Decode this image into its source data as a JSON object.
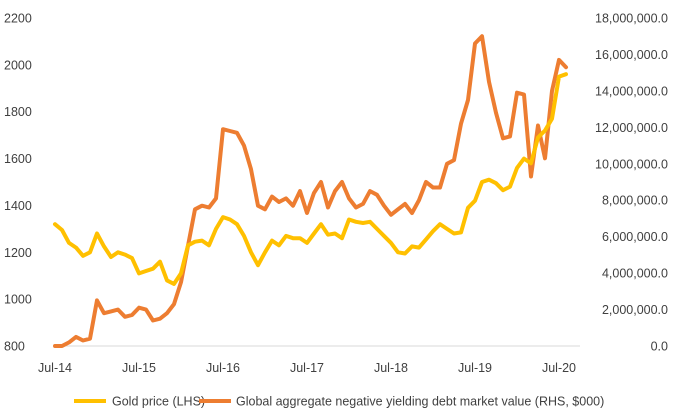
{
  "chart_data": {
    "type": "line",
    "x_ticks": [
      "Jul-14",
      "Jul-15",
      "Jul-16",
      "Jul-17",
      "Jul-18",
      "Jul-19",
      "Jul-20"
    ],
    "left_axis": {
      "ticks": [
        "800",
        "1000",
        "1200",
        "1400",
        "1600",
        "1800",
        "2000",
        "2200"
      ],
      "ylim": [
        800,
        2200
      ]
    },
    "right_axis": {
      "ticks": [
        "0.0",
        "2,000,000.0",
        "4,000,000.0",
        "6,000,000.0",
        "8,000,000.0",
        "10,000,000.0",
        "12,000,000.0",
        "14,000,000.0",
        "16,000,000.0",
        "18,000,000.0"
      ],
      "ylim": [
        0,
        18000000
      ]
    },
    "grid": false,
    "legend_position": "bottom",
    "series": [
      {
        "name": "Gold price (LHS)",
        "axis": "left",
        "color": "#FFC000",
        "points": [
          [
            "2014-07",
            1320
          ],
          [
            "2014-08",
            1295
          ],
          [
            "2014-09",
            1240
          ],
          [
            "2014-10",
            1220
          ],
          [
            "2014-11",
            1185
          ],
          [
            "2014-12",
            1200
          ],
          [
            "2015-01",
            1280
          ],
          [
            "2015-02",
            1225
          ],
          [
            "2015-03",
            1180
          ],
          [
            "2015-04",
            1200
          ],
          [
            "2015-05",
            1190
          ],
          [
            "2015-06",
            1175
          ],
          [
            "2015-07",
            1110
          ],
          [
            "2015-08",
            1120
          ],
          [
            "2015-09",
            1130
          ],
          [
            "2015-10",
            1160
          ],
          [
            "2015-11",
            1080
          ],
          [
            "2015-12",
            1065
          ],
          [
            "2016-01",
            1110
          ],
          [
            "2016-02",
            1230
          ],
          [
            "2016-03",
            1245
          ],
          [
            "2016-04",
            1250
          ],
          [
            "2016-05",
            1230
          ],
          [
            "2016-06",
            1300
          ],
          [
            "2016-07",
            1350
          ],
          [
            "2016-08",
            1340
          ],
          [
            "2016-09",
            1320
          ],
          [
            "2016-10",
            1270
          ],
          [
            "2016-11",
            1200
          ],
          [
            "2016-12",
            1145
          ],
          [
            "2017-01",
            1200
          ],
          [
            "2017-02",
            1250
          ],
          [
            "2017-03",
            1230
          ],
          [
            "2017-04",
            1270
          ],
          [
            "2017-05",
            1260
          ],
          [
            "2017-06",
            1260
          ],
          [
            "2017-07",
            1240
          ],
          [
            "2017-08",
            1280
          ],
          [
            "2017-09",
            1320
          ],
          [
            "2017-10",
            1275
          ],
          [
            "2017-11",
            1280
          ],
          [
            "2017-12",
            1260
          ],
          [
            "2018-01",
            1340
          ],
          [
            "2018-02",
            1330
          ],
          [
            "2018-03",
            1325
          ],
          [
            "2018-04",
            1330
          ],
          [
            "2018-05",
            1300
          ],
          [
            "2018-06",
            1270
          ],
          [
            "2018-07",
            1240
          ],
          [
            "2018-08",
            1200
          ],
          [
            "2018-09",
            1195
          ],
          [
            "2018-10",
            1225
          ],
          [
            "2018-11",
            1220
          ],
          [
            "2018-12",
            1255
          ],
          [
            "2019-01",
            1290
          ],
          [
            "2019-02",
            1320
          ],
          [
            "2019-03",
            1300
          ],
          [
            "2019-04",
            1280
          ],
          [
            "2019-05",
            1285
          ],
          [
            "2019-06",
            1390
          ],
          [
            "2019-07",
            1420
          ],
          [
            "2019-08",
            1500
          ],
          [
            "2019-09",
            1510
          ],
          [
            "2019-10",
            1495
          ],
          [
            "2019-11",
            1465
          ],
          [
            "2019-12",
            1480
          ],
          [
            "2020-01",
            1560
          ],
          [
            "2020-02",
            1600
          ],
          [
            "2020-03",
            1580
          ],
          [
            "2020-04",
            1690
          ],
          [
            "2020-05",
            1720
          ],
          [
            "2020-06",
            1770
          ],
          [
            "2020-07",
            1950
          ],
          [
            "2020-08",
            1960
          ]
        ]
      },
      {
        "name": "Global aggregate negative yielding debt market value (RHS, $000)",
        "axis": "right",
        "color": "#ED7D31",
        "points": [
          [
            "2014-07",
            0
          ],
          [
            "2014-08",
            0
          ],
          [
            "2014-09",
            200000
          ],
          [
            "2014-10",
            500000
          ],
          [
            "2014-11",
            300000
          ],
          [
            "2014-12",
            400000
          ],
          [
            "2015-01",
            2500000
          ],
          [
            "2015-02",
            1800000
          ],
          [
            "2015-03",
            1900000
          ],
          [
            "2015-04",
            2000000
          ],
          [
            "2015-05",
            1600000
          ],
          [
            "2015-06",
            1700000
          ],
          [
            "2015-07",
            2100000
          ],
          [
            "2015-08",
            2000000
          ],
          [
            "2015-09",
            1400000
          ],
          [
            "2015-10",
            1500000
          ],
          [
            "2015-11",
            1800000
          ],
          [
            "2015-12",
            2300000
          ],
          [
            "2016-01",
            3500000
          ],
          [
            "2016-02",
            5500000
          ],
          [
            "2016-03",
            7500000
          ],
          [
            "2016-04",
            7700000
          ],
          [
            "2016-05",
            7600000
          ],
          [
            "2016-06",
            8100000
          ],
          [
            "2016-07",
            11900000
          ],
          [
            "2016-08",
            11800000
          ],
          [
            "2016-09",
            11700000
          ],
          [
            "2016-10",
            11000000
          ],
          [
            "2016-11",
            9700000
          ],
          [
            "2016-12",
            7700000
          ],
          [
            "2017-01",
            7500000
          ],
          [
            "2017-02",
            8200000
          ],
          [
            "2017-03",
            7900000
          ],
          [
            "2017-04",
            8100000
          ],
          [
            "2017-05",
            7700000
          ],
          [
            "2017-06",
            8500000
          ],
          [
            "2017-07",
            7300000
          ],
          [
            "2017-08",
            8400000
          ],
          [
            "2017-09",
            9000000
          ],
          [
            "2017-10",
            7600000
          ],
          [
            "2017-11",
            8500000
          ],
          [
            "2017-12",
            9000000
          ],
          [
            "2018-01",
            8100000
          ],
          [
            "2018-02",
            7600000
          ],
          [
            "2018-03",
            7800000
          ],
          [
            "2018-04",
            8500000
          ],
          [
            "2018-05",
            8300000
          ],
          [
            "2018-06",
            7700000
          ],
          [
            "2018-07",
            7200000
          ],
          [
            "2018-08",
            7500000
          ],
          [
            "2018-09",
            7800000
          ],
          [
            "2018-10",
            7300000
          ],
          [
            "2018-11",
            8000000
          ],
          [
            "2018-12",
            9000000
          ],
          [
            "2019-01",
            8700000
          ],
          [
            "2019-02",
            8700000
          ],
          [
            "2019-03",
            10000000
          ],
          [
            "2019-04",
            10200000
          ],
          [
            "2019-05",
            12200000
          ],
          [
            "2019-06",
            13500000
          ],
          [
            "2019-07",
            16600000
          ],
          [
            "2019-08",
            17000000
          ],
          [
            "2019-09",
            14500000
          ],
          [
            "2019-10",
            12800000
          ],
          [
            "2019-11",
            11400000
          ],
          [
            "2019-12",
            11500000
          ],
          [
            "2020-01",
            13900000
          ],
          [
            "2020-02",
            13800000
          ],
          [
            "2020-03",
            9300000
          ],
          [
            "2020-04",
            12100000
          ],
          [
            "2020-05",
            10300000
          ],
          [
            "2020-06",
            14000000
          ],
          [
            "2020-07",
            15700000
          ],
          [
            "2020-08",
            15300000
          ]
        ]
      }
    ]
  }
}
